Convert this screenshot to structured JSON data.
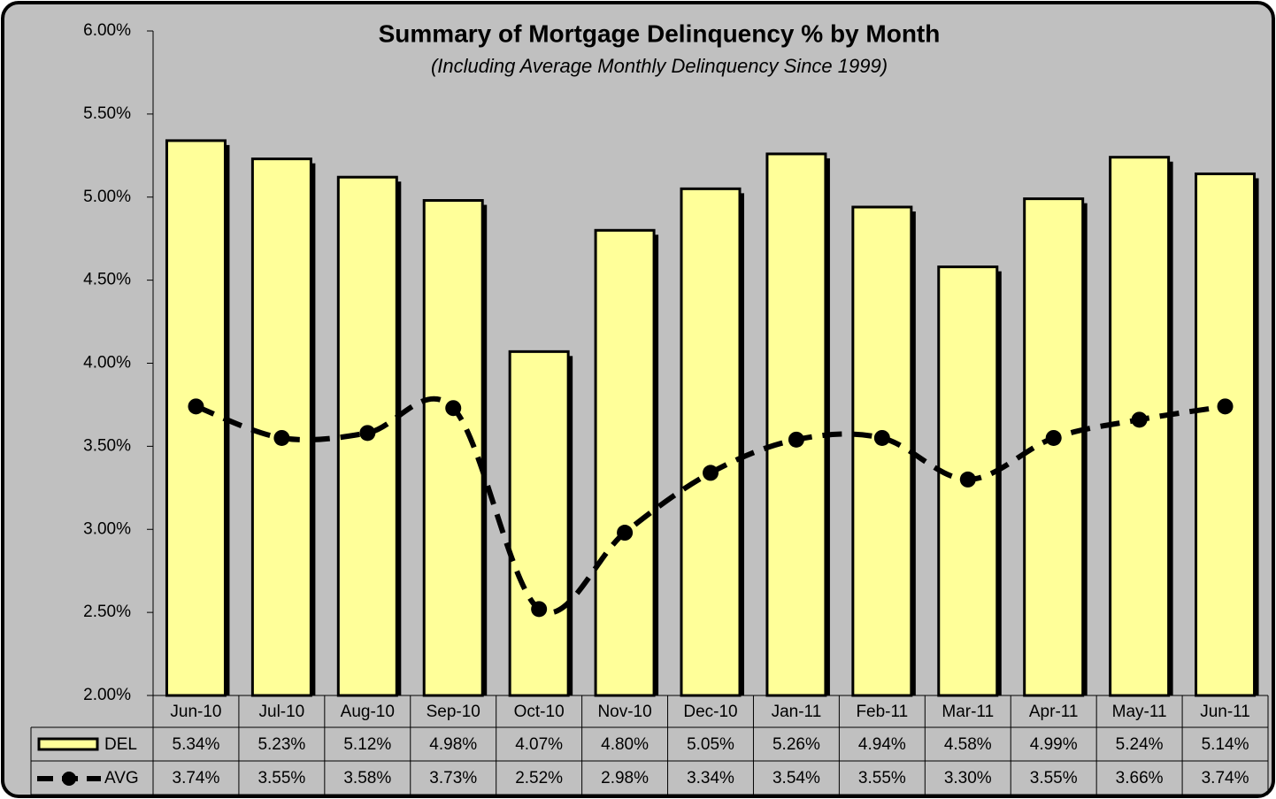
{
  "chart_data": {
    "type": "bar",
    "title": "Summary of Mortgage Delinquency % by Month",
    "subtitle": "(Including Average Monthly Delinquency Since 1999)",
    "categories": [
      "Jun-10",
      "Jul-10",
      "Aug-10",
      "Sep-10",
      "Oct-10",
      "Nov-10",
      "Dec-10",
      "Jan-11",
      "Feb-11",
      "Mar-11",
      "Apr-11",
      "May-11",
      "Jun-11"
    ],
    "series": [
      {
        "name": "DEL",
        "type": "bar",
        "color": "#ffff99",
        "values": [
          5.34,
          5.23,
          5.12,
          4.98,
          4.07,
          4.8,
          5.05,
          5.26,
          4.94,
          4.58,
          4.99,
          5.24,
          5.14
        ],
        "value_labels": [
          "5.34%",
          "5.23%",
          "5.12%",
          "4.98%",
          "4.07%",
          "4.80%",
          "5.05%",
          "5.26%",
          "4.94%",
          "4.58%",
          "4.99%",
          "5.24%",
          "5.14%"
        ]
      },
      {
        "name": "AVG",
        "type": "line",
        "color": "#000000",
        "values": [
          3.74,
          3.55,
          3.58,
          3.73,
          2.52,
          2.98,
          3.34,
          3.54,
          3.55,
          3.3,
          3.55,
          3.66,
          3.74
        ],
        "value_labels": [
          "3.74%",
          "3.55%",
          "3.58%",
          "3.73%",
          "2.52%",
          "2.98%",
          "3.34%",
          "3.54%",
          "3.55%",
          "3.30%",
          "3.55%",
          "3.66%",
          "3.74%"
        ]
      }
    ],
    "ylim": [
      2,
      6
    ],
    "yticks": [
      {
        "value": 2,
        "label": "2.00%"
      },
      {
        "value": 2.5,
        "label": "2.50%"
      },
      {
        "value": 3,
        "label": "3.00%"
      },
      {
        "value": 3.5,
        "label": "3.50%"
      },
      {
        "value": 4,
        "label": "4.00%"
      },
      {
        "value": 4.5,
        "label": "4.50%"
      },
      {
        "value": 5,
        "label": "5.00%"
      },
      {
        "value": 5.5,
        "label": "5.50%"
      },
      {
        "value": 6,
        "label": "6.00%"
      }
    ],
    "data_table": true
  }
}
